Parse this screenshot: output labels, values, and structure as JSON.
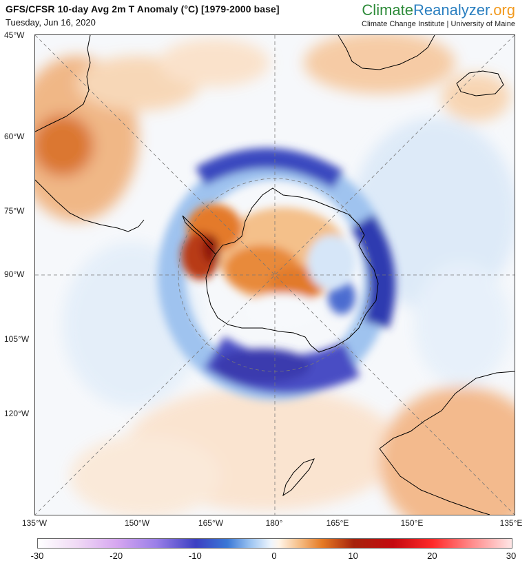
{
  "header": {
    "title": "GFS/CFSR 10-day Avg 2m T Anomaly (°C) [1979-2000 base]",
    "date": "Tuesday, Jun 16, 2020",
    "brand": {
      "part1": "Climate",
      "part2": "Reanalyzer",
      "part3": ".org"
    },
    "subtitle": "Climate Change Institute | University of Maine"
  },
  "map": {
    "projection": "south-polar-stereographic",
    "center": "180°",
    "left_labels": [
      "45°W",
      "60°W",
      "75°W",
      "90°W",
      "105°W",
      "120°W"
    ],
    "bottom_labels": [
      "135°W",
      "150°W",
      "165°W",
      "180°",
      "165°E",
      "150°E",
      "135°E"
    ],
    "colors": {
      "strong_cold": "#2a2e9c",
      "cold": "#4a63c8",
      "cool": "#bcd6f3",
      "warm": "#f3a96a",
      "hot": "#d9620e",
      "very_hot": "#9e1a10"
    }
  },
  "colorbar": {
    "ticks": [
      "-30",
      "-20",
      "-10",
      "0",
      "10",
      "20",
      "30"
    ],
    "min": -30,
    "max": 30,
    "stops": [
      {
        "v": -30,
        "c": "#ffffff"
      },
      {
        "v": -25,
        "c": "#f0d9f5"
      },
      {
        "v": -20,
        "c": "#d6a6f0"
      },
      {
        "v": -15,
        "c": "#9a7fe8"
      },
      {
        "v": -10,
        "c": "#3b3fc2"
      },
      {
        "v": -6,
        "c": "#3a78d6"
      },
      {
        "v": -3,
        "c": "#9fc6f2"
      },
      {
        "v": -0.5,
        "c": "#eef5fd"
      },
      {
        "v": 0.5,
        "c": "#fff5ea"
      },
      {
        "v": 3,
        "c": "#f6c08a"
      },
      {
        "v": 6,
        "c": "#e57a24"
      },
      {
        "v": 10,
        "c": "#a6230c"
      },
      {
        "v": 15,
        "c": "#c40a10"
      },
      {
        "v": 20,
        "c": "#ff2a2a"
      },
      {
        "v": 25,
        "c": "#ff8c8c"
      },
      {
        "v": 30,
        "c": "#ffe6e6"
      }
    ]
  }
}
